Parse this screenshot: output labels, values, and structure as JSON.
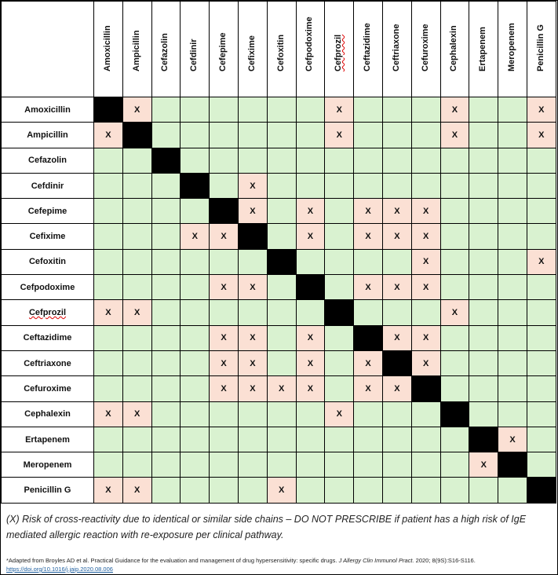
{
  "drugs": [
    "Amoxicillin",
    "Ampicillin",
    "Cefazolin",
    "Cefdinir",
    "Cefepime",
    "Cefixime",
    "Cefoxitin",
    "Cefpodoxime",
    "Cefprozil",
    "Ceftazidime",
    "Ceftriaxone",
    "Cefuroxime",
    "Cephalexin",
    "Ertapenem",
    "Meropenem",
    "Penicillin G"
  ],
  "mark": "X",
  "matrix": [
    [
      1,
      8,
      12,
      15
    ],
    [
      0,
      8,
      12,
      15
    ],
    [],
    [
      5
    ],
    [
      5,
      7,
      9,
      10,
      11
    ],
    [
      3,
      4,
      7,
      9,
      10,
      11
    ],
    [
      11,
      15
    ],
    [
      4,
      5,
      9,
      10,
      11
    ],
    [
      0,
      1,
      12
    ],
    [
      4,
      5,
      7,
      10,
      11
    ],
    [
      4,
      5,
      7,
      9,
      11
    ],
    [
      4,
      5,
      6,
      7,
      9,
      10
    ],
    [
      0,
      1,
      8
    ],
    [
      14
    ],
    [
      13
    ],
    [
      0,
      1,
      6
    ]
  ],
  "colors": {
    "safe": "#d9f2d0",
    "risk": "#fbe0d4",
    "self": "#000000"
  },
  "legend": "(X) Risk of cross-reactivity due to identical or similar side chains – DO NOT PRESCRIBE if patient has a high risk of IgE mediated allergic reaction with re-exposure per clinical pathway.",
  "citation": {
    "text": "*Adapted from Broyles AD et al. Practical Guidance for the evaluation and management of drug hypersensitivity: specific drugs. ",
    "journal": "J Allergy Clin Immunol Pract.",
    "rest": " 2020; 8(9S):S16-S116.",
    "link": "https://doi.org/10.1016/j.jaip.2020.08.006"
  }
}
